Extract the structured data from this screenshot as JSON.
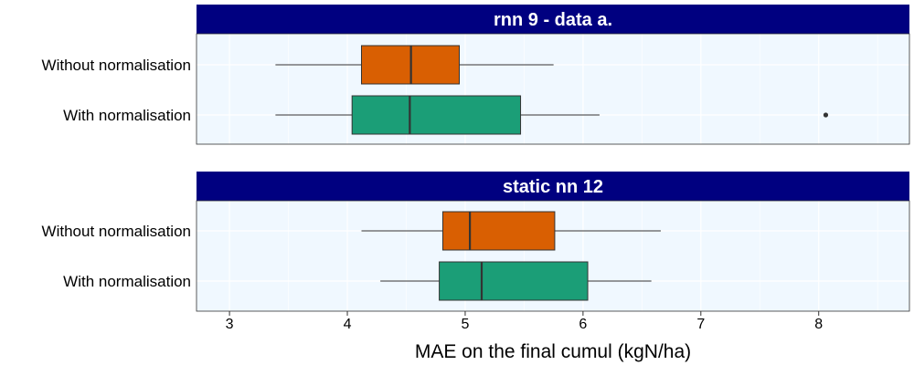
{
  "chart_data": {
    "type": "boxplot",
    "orientation": "horizontal",
    "xlabel": "MAE on the final cumul (kgN/ha)",
    "xlim": [
      2.72,
      8.77
    ],
    "xticks": [
      3,
      4,
      5,
      6,
      7,
      8
    ],
    "grid": true,
    "legend": "none",
    "colors": {
      "Without normalisation": "#d95f02",
      "With normalisation": "#1b9e77",
      "panel_background": "#f0f8ff",
      "strip_background": "#000080",
      "strip_text": "#ffffff"
    },
    "facets": [
      {
        "title": "rnn 9 - data a.",
        "boxes": [
          {
            "category": "Without normalisation",
            "whisker_low": 3.39,
            "q1": 4.12,
            "median": 4.54,
            "q3": 4.95,
            "whisker_high": 5.75,
            "outliers": []
          },
          {
            "category": "With normalisation",
            "whisker_low": 3.39,
            "q1": 4.04,
            "median": 4.53,
            "q3": 5.47,
            "whisker_high": 6.14,
            "outliers": [
              8.06
            ]
          }
        ]
      },
      {
        "title": "static nn 12",
        "boxes": [
          {
            "category": "Without normalisation",
            "whisker_low": 4.12,
            "q1": 4.81,
            "median": 5.04,
            "q3": 5.76,
            "whisker_high": 6.66,
            "outliers": []
          },
          {
            "category": "With normalisation",
            "whisker_low": 4.28,
            "q1": 4.78,
            "median": 5.14,
            "q3": 6.04,
            "whisker_high": 6.58,
            "outliers": []
          }
        ]
      }
    ]
  }
}
